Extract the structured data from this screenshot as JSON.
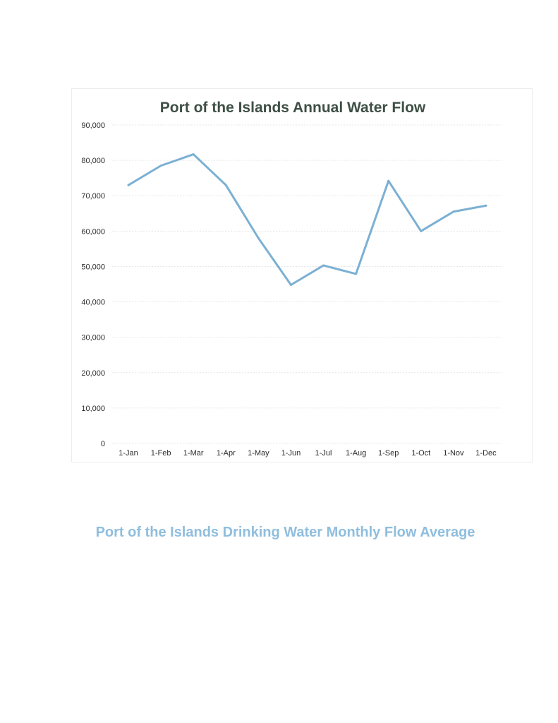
{
  "colors": {
    "series": "#7bb0d3",
    "title": "#3e4f45",
    "footer_title": "#8fbede"
  },
  "chart_data": {
    "type": "line",
    "title": "Port of the Islands Annual Water Flow",
    "xlabel": "",
    "ylabel": "",
    "categories": [
      "1-Jan",
      "1-Feb",
      "1-Mar",
      "1-Apr",
      "1-May",
      "1-Jun",
      "1-Jul",
      "1-Aug",
      "1-Sep",
      "1-Oct",
      "1-Nov",
      "1-Dec"
    ],
    "series": [
      {
        "values": [
          73000,
          78500,
          81700,
          73000,
          58000,
          44800,
          50300,
          47900,
          74200,
          60000,
          65500,
          67200
        ]
      }
    ],
    "ylim": [
      0,
      90000
    ],
    "yticks": [
      0,
      10000,
      20000,
      30000,
      40000,
      50000,
      60000,
      70000,
      80000,
      90000
    ],
    "ytick_labels": [
      "0",
      "10,000",
      "20,000",
      "30,000",
      "40,000",
      "50,000",
      "60,000",
      "70,000",
      "80,000",
      "90,000"
    ],
    "grid": true,
    "legend": "none"
  },
  "footer": {
    "title": "Port of the Islands Drinking Water Monthly Flow Average"
  }
}
